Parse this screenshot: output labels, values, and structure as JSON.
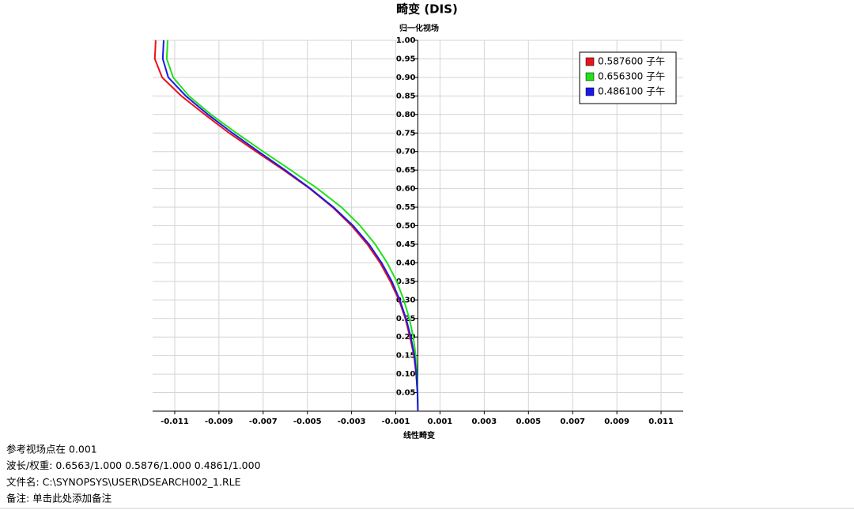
{
  "chart_data": {
    "type": "line",
    "title": "畸变 (DIS)",
    "y_label": "归一化视场",
    "x_label": "线性畸变",
    "fields": [
      0,
      0.05,
      0.1,
      0.15,
      0.2,
      0.25,
      0.3,
      0.35,
      0.4,
      0.45,
      0.5,
      0.55,
      0.6,
      0.65,
      0.7,
      0.75,
      0.8,
      0.85,
      0.9,
      0.95,
      1.0
    ],
    "series": [
      {
        "name": "0.587600 子午",
        "color": "#e8141b",
        "values": [
          0,
          -2e-05,
          -8e-05,
          -0.00018,
          -0.00036,
          -0.00057,
          -0.00086,
          -0.00125,
          -0.00171,
          -0.00229,
          -0.003,
          -0.00386,
          -0.00489,
          -0.00607,
          -0.00732,
          -0.00854,
          -0.00964,
          -0.0107,
          -0.01157,
          -0.0119,
          -0.01186
        ]
      },
      {
        "name": "0.656300 子午",
        "color": "#22e01a",
        "values": [
          0,
          -1e-05,
          -4e-05,
          -0.0001,
          -0.00021,
          -0.00039,
          -0.00064,
          -0.00096,
          -0.00139,
          -0.00193,
          -0.00261,
          -0.00346,
          -0.00454,
          -0.00575,
          -0.007,
          -0.00821,
          -0.00936,
          -0.01036,
          -0.01107,
          -0.01136,
          -0.01132
        ]
      },
      {
        "name": "0.486100 子午",
        "color": "#1a1ae8",
        "values": [
          0,
          -2e-05,
          -7e-05,
          -0.00016,
          -0.00032,
          -0.00054,
          -0.00082,
          -0.00118,
          -0.00164,
          -0.00221,
          -0.00293,
          -0.00382,
          -0.00486,
          -0.006,
          -0.00721,
          -0.00839,
          -0.0095,
          -0.0105,
          -0.01129,
          -0.01154,
          -0.0115
        ]
      }
    ],
    "xlim": [
      -0.012,
      0.012
    ],
    "ylim": [
      0,
      1
    ],
    "xticks": [
      -0.011,
      -0.009,
      -0.007,
      -0.005,
      -0.003,
      -0.001,
      0.001,
      0.003,
      0.005,
      0.007,
      0.009,
      0.011
    ],
    "yticks": [
      0.05,
      {
        "value": 0.1,
        "label": "0.10"
      },
      0.15,
      {
        "value": 0.2,
        "label": "0.20"
      },
      0.25,
      {
        "value": 0.3,
        "label": "0.30"
      },
      0.35,
      {
        "value": 0.4,
        "label": "0.40"
      },
      0.45,
      {
        "value": 0.5,
        "label": "0.50"
      },
      0.55,
      {
        "value": 0.6,
        "label": "0.60"
      },
      0.65,
      {
        "value": 0.7,
        "label": "0.70"
      },
      0.75,
      {
        "value": 0.8,
        "label": "0.80"
      },
      0.85,
      {
        "value": 0.9,
        "label": "0.90"
      },
      0.95,
      {
        "value": 1.0,
        "label": "1.00"
      }
    ],
    "grid": true,
    "legend": "top-right",
    "notes": [
      "参考视场点在  0.001",
      "波长/权重:  0.6563/1.000  0.5876/1.000  0.4861/1.000",
      "文件名:  C:\\SYNOPSYS\\USER\\DSEARCH002_1.RLE",
      "备注:  单击此处添加备注"
    ]
  }
}
